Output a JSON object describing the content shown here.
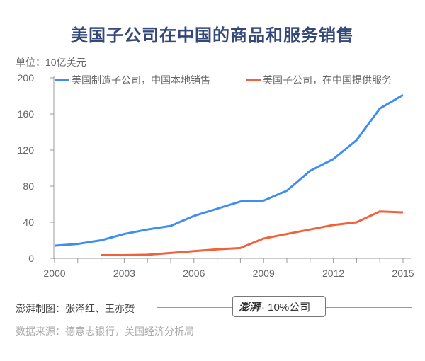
{
  "title": "美国子公司在中国的商品和服务销售",
  "unit_label": "单位：10亿美元",
  "credit": "澎湃制图：张泽红、王亦赟",
  "source": "数据来源：德意志银行，美国经济分析局",
  "logo": {
    "brand": "澎湃",
    "text": "· 10%公司"
  },
  "chart_data": {
    "type": "line",
    "title": "美国子公司在中国的商品和服务销售",
    "ylabel": "单位：10亿美元",
    "ylim": [
      0,
      200
    ],
    "xlim": [
      2000,
      2015
    ],
    "yticks": [
      0,
      40,
      80,
      120,
      160,
      200
    ],
    "xticks": [
      2000,
      2003,
      2006,
      2009,
      2012,
      2015
    ],
    "grid": false,
    "legend": "top",
    "series": [
      {
        "name": "美国制造子公司，中国本地销售",
        "color": "#3d8ef0",
        "x": [
          2000,
          2001,
          2002,
          2003,
          2004,
          2005,
          2006,
          2007,
          2008,
          2009,
          2010,
          2011,
          2012,
          2013,
          2014,
          2015
        ],
        "values": [
          14,
          16,
          20,
          27,
          32,
          36,
          47,
          55,
          63,
          64,
          75,
          97,
          110,
          131,
          166,
          181
        ]
      },
      {
        "name": "美国子公司，在中国提供服务",
        "color": "#f0623a",
        "x": [
          2002,
          2003,
          2004,
          2005,
          2006,
          2007,
          2008,
          2009,
          2010,
          2011,
          2012,
          2013,
          2014,
          2015
        ],
        "values": [
          3.5,
          3.5,
          4,
          6,
          8,
          10,
          11.5,
          22,
          27,
          32,
          37,
          40,
          52,
          51
        ]
      }
    ]
  }
}
